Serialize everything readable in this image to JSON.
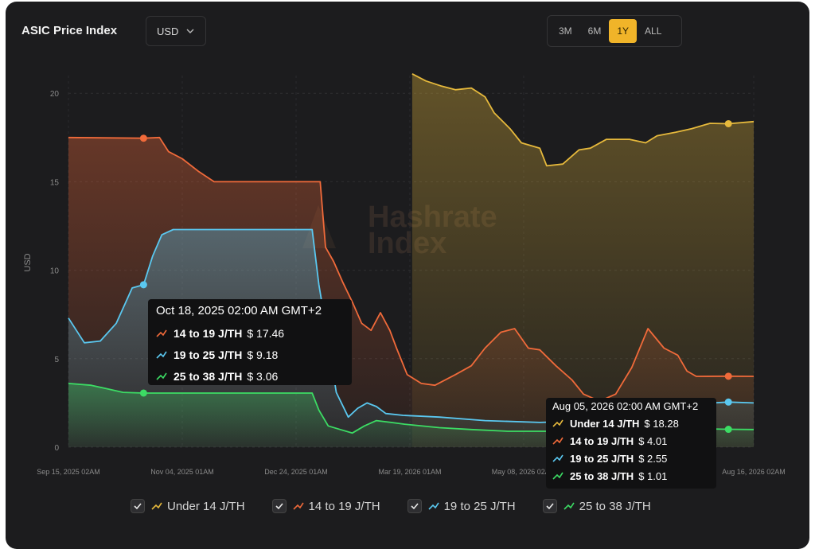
{
  "header": {
    "title": "ASIC Price Index",
    "currency": "USD",
    "ranges": [
      "3M",
      "6M",
      "1Y",
      "ALL"
    ],
    "active_range": "1Y"
  },
  "watermark": {
    "line1": "Hashrate",
    "line2": "Index"
  },
  "colors": {
    "under14": "#e6b93c",
    "r14_19": "#f06a3a",
    "r19_25": "#5ac8f0",
    "r25_38": "#3cdc64",
    "background": "#1c1c1e",
    "active": "#f0b429"
  },
  "chart_data": {
    "type": "line",
    "title": "ASIC Price Index",
    "ylabel": "USD",
    "xlabel": "",
    "ylim": [
      0,
      21
    ],
    "yticks": [
      0,
      5,
      10,
      15,
      20
    ],
    "x_tick_labels": [
      "Sep 15, 2025 02AM",
      "Nov 04, 2025 01AM",
      "Dec 24, 2025 01AM",
      "Mar 19, 2026 01AM",
      "May 08, 2026 02AM",
      "Aug 16, 2026 02AM"
    ],
    "x_tick_dates": [
      "2025-09-15",
      "2025-11-04",
      "2025-12-24",
      "2026-03-19",
      "2026-05-08",
      "2026-08-16"
    ],
    "grid": true,
    "legend_position": "bottom",
    "series": [
      {
        "name": "Under 14 J/TH",
        "key": "under14",
        "points": [
          [
            "2026-03-20",
            21.1
          ],
          [
            "2026-03-26",
            20.7
          ],
          [
            "2026-04-02",
            20.4
          ],
          [
            "2026-04-08",
            20.2
          ],
          [
            "2026-04-15",
            20.3
          ],
          [
            "2026-04-21",
            19.8
          ],
          [
            "2026-04-25",
            18.9
          ],
          [
            "2026-05-02",
            18.0
          ],
          [
            "2026-05-07",
            17.2
          ],
          [
            "2026-05-15",
            16.9
          ],
          [
            "2026-05-18",
            15.9
          ],
          [
            "2026-05-25",
            16.0
          ],
          [
            "2026-06-01",
            16.8
          ],
          [
            "2026-06-06",
            16.9
          ],
          [
            "2026-06-13",
            17.4
          ],
          [
            "2026-06-23",
            17.4
          ],
          [
            "2026-06-30",
            17.2
          ],
          [
            "2026-07-05",
            17.6
          ],
          [
            "2026-07-13",
            17.8
          ],
          [
            "2026-07-20",
            18.0
          ],
          [
            "2026-07-28",
            18.3
          ],
          [
            "2026-08-05",
            18.28
          ],
          [
            "2026-08-16",
            18.4
          ]
        ]
      },
      {
        "name": "14 to 19 J/TH",
        "key": "r14_19",
        "points": [
          [
            "2025-09-15",
            17.5
          ],
          [
            "2025-10-18",
            17.46
          ],
          [
            "2025-10-25",
            17.5
          ],
          [
            "2025-10-29",
            16.7
          ],
          [
            "2025-11-04",
            16.3
          ],
          [
            "2025-11-11",
            15.6
          ],
          [
            "2025-11-18",
            15.0
          ],
          [
            "2025-12-01",
            15.0
          ],
          [
            "2026-01-11",
            15.0
          ],
          [
            "2026-01-15",
            11.3
          ],
          [
            "2026-01-21",
            10.5
          ],
          [
            "2026-01-28",
            9.3
          ],
          [
            "2026-02-04",
            8.2
          ],
          [
            "2026-02-11",
            7.0
          ],
          [
            "2026-02-18",
            6.6
          ],
          [
            "2026-02-25",
            7.6
          ],
          [
            "2026-03-04",
            6.6
          ],
          [
            "2026-03-09",
            5.6
          ],
          [
            "2026-03-17",
            4.1
          ],
          [
            "2026-03-24",
            3.6
          ],
          [
            "2026-03-30",
            3.5
          ],
          [
            "2026-04-08",
            4.1
          ],
          [
            "2026-04-15",
            4.6
          ],
          [
            "2026-04-21",
            5.6
          ],
          [
            "2026-04-28",
            6.5
          ],
          [
            "2026-05-04",
            6.7
          ],
          [
            "2026-05-10",
            5.6
          ],
          [
            "2026-05-15",
            5.5
          ],
          [
            "2026-05-22",
            4.6
          ],
          [
            "2026-05-29",
            3.8
          ],
          [
            "2026-06-03",
            3.0
          ],
          [
            "2026-06-10",
            2.6
          ],
          [
            "2026-06-17",
            3.0
          ],
          [
            "2026-06-24",
            4.5
          ],
          [
            "2026-07-01",
            6.7
          ],
          [
            "2026-07-08",
            5.6
          ],
          [
            "2026-07-14",
            5.2
          ],
          [
            "2026-07-18",
            4.3
          ],
          [
            "2026-07-22",
            4.0
          ],
          [
            "2026-08-05",
            4.01
          ],
          [
            "2026-08-16",
            4.0
          ]
        ]
      },
      {
        "name": "19 to 25 J/TH",
        "key": "r19_25",
        "points": [
          [
            "2025-09-15",
            7.3
          ],
          [
            "2025-09-22",
            5.9
          ],
          [
            "2025-09-29",
            6.0
          ],
          [
            "2025-10-06",
            7.0
          ],
          [
            "2025-10-13",
            9.0
          ],
          [
            "2025-10-18",
            9.18
          ],
          [
            "2025-10-22",
            10.8
          ],
          [
            "2025-10-26",
            12.0
          ],
          [
            "2025-10-31",
            12.3
          ],
          [
            "2025-12-25",
            12.3
          ],
          [
            "2026-01-05",
            12.3
          ],
          [
            "2026-01-10",
            9.2
          ],
          [
            "2026-01-17",
            6.0
          ],
          [
            "2026-01-23",
            3.1
          ],
          [
            "2026-02-01",
            1.7
          ],
          [
            "2026-02-08",
            2.2
          ],
          [
            "2026-02-15",
            2.5
          ],
          [
            "2026-02-22",
            2.3
          ],
          [
            "2026-03-01",
            1.9
          ],
          [
            "2026-03-14",
            1.8
          ],
          [
            "2026-04-01",
            1.7
          ],
          [
            "2026-04-21",
            1.5
          ],
          [
            "2026-05-15",
            1.4
          ],
          [
            "2026-06-10",
            1.5
          ],
          [
            "2026-07-15",
            2.4
          ],
          [
            "2026-08-05",
            2.55
          ],
          [
            "2026-08-16",
            2.5
          ]
        ]
      },
      {
        "name": "25 to 38 J/TH",
        "key": "r25_38",
        "points": [
          [
            "2025-09-15",
            3.6
          ],
          [
            "2025-09-25",
            3.5
          ],
          [
            "2025-10-02",
            3.3
          ],
          [
            "2025-10-09",
            3.1
          ],
          [
            "2025-10-18",
            3.06
          ],
          [
            "2026-01-05",
            3.06
          ],
          [
            "2026-01-10",
            2.1
          ],
          [
            "2026-01-17",
            1.2
          ],
          [
            "2026-01-26",
            1.0
          ],
          [
            "2026-02-04",
            0.8
          ],
          [
            "2026-02-13",
            1.2
          ],
          [
            "2026-02-22",
            1.5
          ],
          [
            "2026-03-05",
            1.4
          ],
          [
            "2026-03-15",
            1.3
          ],
          [
            "2026-04-01",
            1.1
          ],
          [
            "2026-04-15",
            1.0
          ],
          [
            "2026-05-01",
            0.9
          ],
          [
            "2026-06-01",
            0.9
          ],
          [
            "2026-07-01",
            1.1
          ],
          [
            "2026-08-05",
            1.01
          ],
          [
            "2026-08-16",
            1.0
          ]
        ]
      }
    ],
    "markers": [
      {
        "key": "r14_19",
        "x": "2025-10-18",
        "y": 17.46
      },
      {
        "key": "r19_25",
        "x": "2025-10-18",
        "y": 9.18
      },
      {
        "key": "r25_38",
        "x": "2025-10-18",
        "y": 3.06
      },
      {
        "key": "under14",
        "x": "2026-08-05",
        "y": 18.28
      },
      {
        "key": "r14_19",
        "x": "2026-08-05",
        "y": 4.01
      },
      {
        "key": "r19_25",
        "x": "2026-08-05",
        "y": 2.55
      },
      {
        "key": "r25_38",
        "x": "2026-08-05",
        "y": 1.01
      }
    ]
  },
  "tooltips": [
    {
      "title": "Oct 18, 2025 02:00 AM GMT+2",
      "rows": [
        {
          "key": "r14_19",
          "label": "14 to 19 J/TH",
          "value": "$ 17.46"
        },
        {
          "key": "r19_25",
          "label": "19 to 25 J/TH",
          "value": "$ 9.18"
        },
        {
          "key": "r25_38",
          "label": "25 to 38 J/TH",
          "value": "$ 3.06"
        }
      ]
    },
    {
      "title": "Aug 05, 2026 02:00 AM GMT+2",
      "rows": [
        {
          "key": "under14",
          "label": "Under 14 J/TH",
          "value": "$ 18.28"
        },
        {
          "key": "r14_19",
          "label": "14 to 19 J/TH",
          "value": "$ 4.01"
        },
        {
          "key": "r19_25",
          "label": "19 to 25 J/TH",
          "value": "$ 2.55"
        },
        {
          "key": "r25_38",
          "label": "25 to 38 J/TH",
          "value": "$ 1.01"
        }
      ]
    }
  ],
  "legend": [
    {
      "key": "under14",
      "label": "Under 14 J/TH",
      "checked": true
    },
    {
      "key": "r14_19",
      "label": "14 to 19 J/TH",
      "checked": true
    },
    {
      "key": "r19_25",
      "label": "19 to 25 J/TH",
      "checked": true
    },
    {
      "key": "r25_38",
      "label": "25 to 38 J/TH",
      "checked": true
    }
  ]
}
